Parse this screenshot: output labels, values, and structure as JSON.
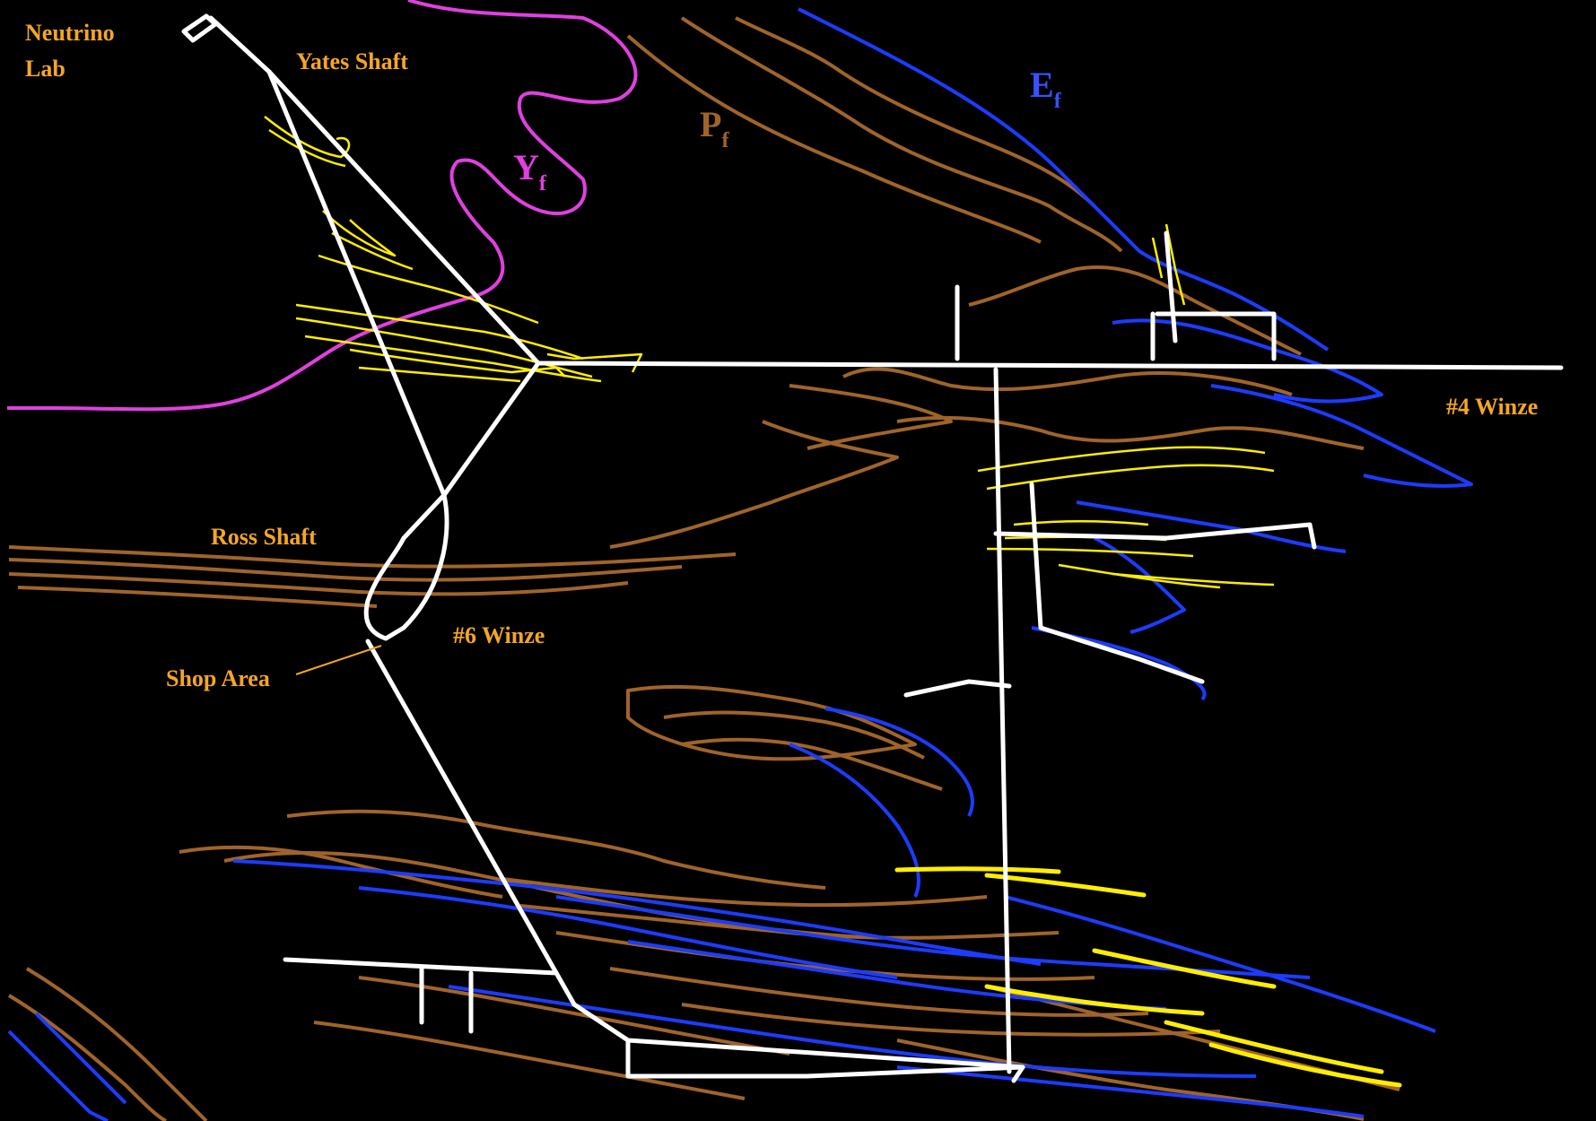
{
  "colors": {
    "background": "#000000",
    "drifts": "#ffffff",
    "label": "#f5a623",
    "Y_contact": "#e040e0",
    "P_contact": "#a0642a",
    "E_contact": "#1c3cff",
    "orebody": "#ffee00"
  },
  "labels": {
    "neutrino_lab_line1": "Neutrino",
    "neutrino_lab_line2": "Lab",
    "yates_shaft": "Yates Shaft",
    "ross_shaft": "Ross Shaft",
    "winze6": "#6 Winze",
    "shop_area": "Shop Area",
    "winze4": "#4 Winze"
  },
  "formations": {
    "Y": {
      "main": "Y",
      "sub": "f"
    },
    "P": {
      "main": "P",
      "sub": "f"
    },
    "E": {
      "main": "E",
      "sub": "f"
    }
  }
}
